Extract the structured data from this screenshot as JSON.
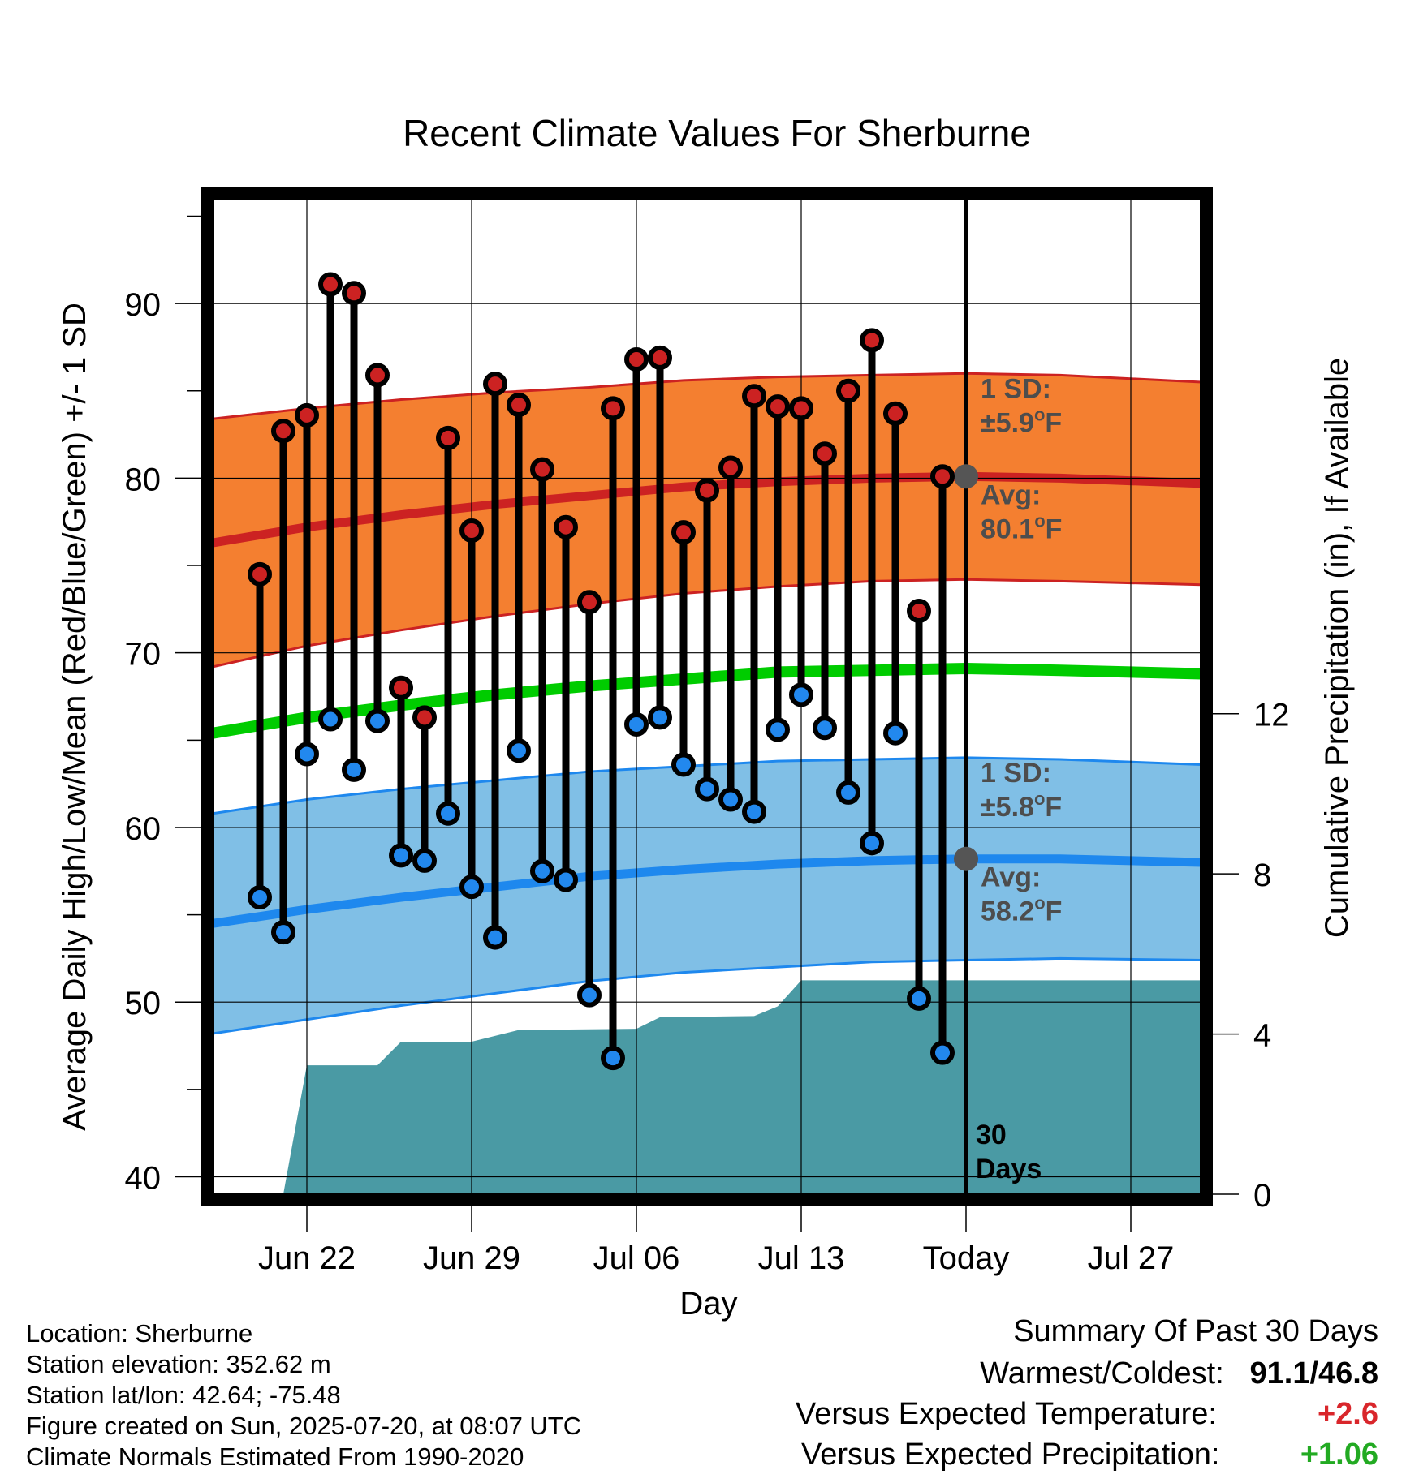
{
  "info": {
    "location": "Location: Sherburne",
    "elevation": "Station elevation: 352.62 m",
    "latlon": "Station lat/lon: 42.64; -75.48",
    "created": "Figure created on Sun, 2025-07-20, at 08:07 UTC",
    "normals": "Climate Normals Estimated From 1990-2020"
  },
  "summary": {
    "title": "Summary Of Past 30 Days",
    "warm_cold_label": "Warmest/Coldest:",
    "warmest": "91.1",
    "slash": "/",
    "coldest": "46.8",
    "temp_label": "Versus Expected Temperature:",
    "temp_value": "+2.6",
    "precip_label": "Versus Expected Precipitation:",
    "precip_value": "+1.06"
  },
  "colors": {
    "high_dot": "#cc2222",
    "low_dot": "#2288ee",
    "high_band": "#f47f30",
    "high_band_edge": "#cc2222",
    "low_band": "#80bfe6",
    "low_band_edge": "#1e88ee",
    "mean_line": "#00cc00",
    "precip": "#4a9aa4",
    "marker": "#555555"
  },
  "chart_data": {
    "type": "line",
    "title": "Recent Climate Values For Sherburne",
    "xlabel": "Day",
    "ylabel": "Average Daily High/Low/Mean (Red/Blue/Green) +/- 1 SD",
    "y2label": "Cumulative Precipitation (in), If Available",
    "ylim": [
      39,
      96
    ],
    "y2lim": [
      0,
      24.86
    ],
    "yticks": [
      "40",
      "50",
      "60",
      "70",
      "80",
      "90"
    ],
    "y2ticks": [
      "0",
      "4",
      "8",
      "12"
    ],
    "xlim": [
      "2025-06-18",
      "2025-07-30"
    ],
    "xticks": [
      {
        "date": "2025-06-22",
        "label": "Jun 22"
      },
      {
        "date": "2025-06-29",
        "label": "Jun 29"
      },
      {
        "date": "2025-07-06",
        "label": "Jul 06"
      },
      {
        "date": "2025-07-13",
        "label": "Jul 13"
      },
      {
        "date": "2025-07-20",
        "label": "Today"
      },
      {
        "date": "2025-07-27",
        "label": "Jul 27"
      }
    ],
    "today": "2025-07-20",
    "days_label": "30\nDays",
    "observed": [
      {
        "date": "2025-06-20",
        "high": 74.5,
        "low": 56.0
      },
      {
        "date": "2025-06-21",
        "high": 82.7,
        "low": 54.0
      },
      {
        "date": "2025-06-22",
        "high": 83.6,
        "low": 64.2
      },
      {
        "date": "2025-06-23",
        "high": 91.1,
        "low": 66.2
      },
      {
        "date": "2025-06-24",
        "high": 90.6,
        "low": 63.3
      },
      {
        "date": "2025-06-25",
        "high": 85.9,
        "low": 66.1
      },
      {
        "date": "2025-06-26",
        "high": 68.0,
        "low": 58.4
      },
      {
        "date": "2025-06-27",
        "high": 66.3,
        "low": 58.1
      },
      {
        "date": "2025-06-28",
        "high": 82.3,
        "low": 60.8
      },
      {
        "date": "2025-06-29",
        "high": 77.0,
        "low": 56.6
      },
      {
        "date": "2025-06-30",
        "high": 85.4,
        "low": 53.7
      },
      {
        "date": "2025-07-01",
        "high": 84.2,
        "low": 64.4
      },
      {
        "date": "2025-07-02",
        "high": 80.5,
        "low": 57.5
      },
      {
        "date": "2025-07-03",
        "high": 77.2,
        "low": 57.0
      },
      {
        "date": "2025-07-04",
        "high": 72.9,
        "low": 50.4
      },
      {
        "date": "2025-07-05",
        "high": 84.0,
        "low": 46.8
      },
      {
        "date": "2025-07-06",
        "high": 86.8,
        "low": 65.9
      },
      {
        "date": "2025-07-07",
        "high": 86.9,
        "low": 66.3
      },
      {
        "date": "2025-07-08",
        "high": 76.9,
        "low": 63.6
      },
      {
        "date": "2025-07-09",
        "high": 79.3,
        "low": 62.2
      },
      {
        "date": "2025-07-10",
        "high": 80.6,
        "low": 61.6
      },
      {
        "date": "2025-07-11",
        "high": 84.7,
        "low": 60.9
      },
      {
        "date": "2025-07-12",
        "high": 84.1,
        "low": 65.6
      },
      {
        "date": "2025-07-13",
        "high": 84.0,
        "low": 67.6
      },
      {
        "date": "2025-07-14",
        "high": 81.4,
        "low": 65.7
      },
      {
        "date": "2025-07-15",
        "high": 85.0,
        "low": 62.0
      },
      {
        "date": "2025-07-16",
        "high": 87.9,
        "low": 59.1
      },
      {
        "date": "2025-07-17",
        "high": 83.7,
        "low": 65.4
      },
      {
        "date": "2025-07-18",
        "high": 72.4,
        "low": 50.2
      },
      {
        "date": "2025-07-19",
        "high": 80.1,
        "low": 47.1
      }
    ],
    "normals": [
      {
        "date": "2025-06-18",
        "high": 76.3,
        "high_sd": 7.1,
        "low": 54.5,
        "low_sd": 6.3,
        "mean": 65.4
      },
      {
        "date": "2025-06-22",
        "high": 77.2,
        "high_sd": 6.8,
        "low": 55.3,
        "low_sd": 6.3,
        "mean": 66.3
      },
      {
        "date": "2025-06-26",
        "high": 77.9,
        "high_sd": 6.6,
        "low": 56.0,
        "low_sd": 6.2,
        "mean": 67.0
      },
      {
        "date": "2025-06-30",
        "high": 78.5,
        "high_sd": 6.4,
        "low": 56.6,
        "low_sd": 6.1,
        "mean": 67.6
      },
      {
        "date": "2025-07-04",
        "high": 79.0,
        "high_sd": 6.2,
        "low": 57.2,
        "low_sd": 6.0,
        "mean": 68.1
      },
      {
        "date": "2025-07-08",
        "high": 79.5,
        "high_sd": 6.1,
        "low": 57.6,
        "low_sd": 5.9,
        "mean": 68.5
      },
      {
        "date": "2025-07-12",
        "high": 79.8,
        "high_sd": 6.0,
        "low": 57.9,
        "low_sd": 5.9,
        "mean": 68.9
      },
      {
        "date": "2025-07-16",
        "high": 80.0,
        "high_sd": 5.9,
        "low": 58.1,
        "low_sd": 5.8,
        "mean": 69.0
      },
      {
        "date": "2025-07-20",
        "high": 80.1,
        "high_sd": 5.9,
        "low": 58.2,
        "low_sd": 5.8,
        "mean": 69.1
      },
      {
        "date": "2025-07-24",
        "high": 80.0,
        "high_sd": 5.9,
        "low": 58.2,
        "low_sd": 5.7,
        "mean": 69.0
      },
      {
        "date": "2025-07-30",
        "high": 79.7,
        "high_sd": 5.8,
        "low": 58.0,
        "low_sd": 5.6,
        "mean": 68.8
      }
    ],
    "precip_cumulative": [
      {
        "date": "2025-06-20",
        "value": 0.0
      },
      {
        "date": "2025-06-21",
        "value": 0.0
      },
      {
        "date": "2025-06-22",
        "value": 3.22
      },
      {
        "date": "2025-06-25",
        "value": 3.22
      },
      {
        "date": "2025-06-26",
        "value": 3.81
      },
      {
        "date": "2025-06-29",
        "value": 3.81
      },
      {
        "date": "2025-07-01",
        "value": 4.1
      },
      {
        "date": "2025-07-06",
        "value": 4.13
      },
      {
        "date": "2025-07-07",
        "value": 4.42
      },
      {
        "date": "2025-07-11",
        "value": 4.45
      },
      {
        "date": "2025-07-12",
        "value": 4.69
      },
      {
        "date": "2025-07-13",
        "value": 5.34
      },
      {
        "date": "2025-07-30",
        "value": 5.34
      }
    ],
    "annotations": {
      "high_sd_line1": "1 SD:",
      "high_sd_line2": "±5.9",
      "high_avg_line1": "Avg:",
      "high_avg_line2": "80.1",
      "low_sd_line1": "1 SD:",
      "low_sd_line2": "±5.8",
      "low_avg_line1": "Avg:",
      "low_avg_line2": "58.2",
      "deg": "o",
      "unit": "F"
    }
  }
}
